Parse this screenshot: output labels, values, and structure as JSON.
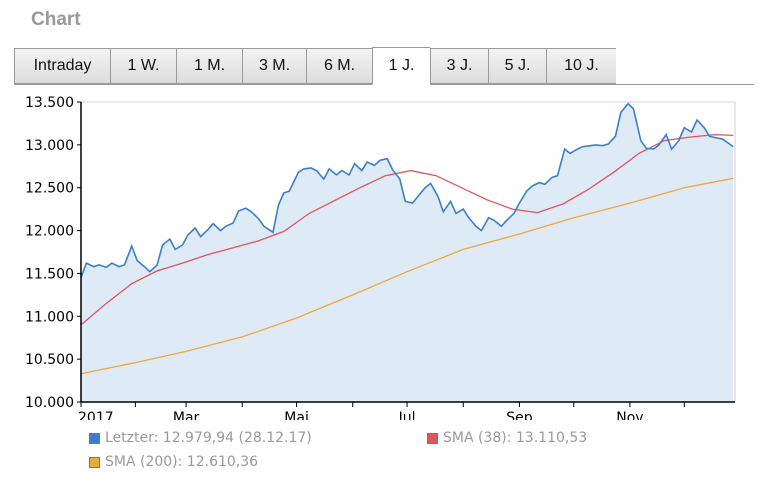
{
  "header": {
    "title": "Chart"
  },
  "tabs": [
    {
      "label": "Intraday",
      "active": false
    },
    {
      "label": "1 W.",
      "active": false
    },
    {
      "label": "1 M.",
      "active": false
    },
    {
      "label": "3 M.",
      "active": false
    },
    {
      "label": "6 M.",
      "active": false
    },
    {
      "label": "1 J.",
      "active": true
    },
    {
      "label": "3 J.",
      "active": false
    },
    {
      "label": "5 J.",
      "active": false
    },
    {
      "label": "10 J.",
      "active": false
    }
  ],
  "legend": {
    "last": "Letzter: 12.979,94 (28.12.17)",
    "sma38": "SMA (38): 13.110,53",
    "sma200": "SMA (200): 12.610,36"
  },
  "chart_data": {
    "type": "line",
    "title": "",
    "xlabel": "",
    "ylabel": "",
    "xlim": [
      "2017-01-02",
      "2017-12-29"
    ],
    "ylim": [
      10000,
      13500
    ],
    "yticks": [
      10000,
      10500,
      11000,
      11500,
      12000,
      12500,
      13000,
      13500
    ],
    "ytick_labels": [
      "10.000",
      "10.500",
      "11.000",
      "11.500",
      "12.000",
      "12.500",
      "13.000",
      "13.500"
    ],
    "xticks": [
      {
        "date": "2017-01-02",
        "label": "2017"
      },
      {
        "date": "2017-03-01",
        "label": "Mar"
      },
      {
        "date": "2017-05-01",
        "label": "Mai"
      },
      {
        "date": "2017-07-01",
        "label": "Jul"
      },
      {
        "date": "2017-09-01",
        "label": "Sep"
      },
      {
        "date": "2017-11-01",
        "label": "Nov"
      }
    ],
    "grid": false,
    "series": [
      {
        "name": "Letzter",
        "color": "#3c7fc8",
        "fill": "#deeaf6",
        "x": [
          "2017-01-02",
          "2017-01-05",
          "2017-01-09",
          "2017-01-12",
          "2017-01-16",
          "2017-01-19",
          "2017-01-23",
          "2017-01-26",
          "2017-01-30",
          "2017-02-02",
          "2017-02-06",
          "2017-02-09",
          "2017-02-13",
          "2017-02-16",
          "2017-02-20",
          "2017-02-23",
          "2017-02-27",
          "2017-03-02",
          "2017-03-06",
          "2017-03-09",
          "2017-03-13",
          "2017-03-16",
          "2017-03-20",
          "2017-03-23",
          "2017-03-27",
          "2017-03-30",
          "2017-04-03",
          "2017-04-06",
          "2017-04-10",
          "2017-04-13",
          "2017-04-18",
          "2017-04-21",
          "2017-04-24",
          "2017-04-27",
          "2017-05-02",
          "2017-05-05",
          "2017-05-09",
          "2017-05-12",
          "2017-05-16",
          "2017-05-19",
          "2017-05-23",
          "2017-05-26",
          "2017-05-30",
          "2017-06-02",
          "2017-06-06",
          "2017-06-09",
          "2017-06-13",
          "2017-06-16",
          "2017-06-20",
          "2017-06-23",
          "2017-06-27",
          "2017-06-30",
          "2017-07-04",
          "2017-07-07",
          "2017-07-11",
          "2017-07-14",
          "2017-07-18",
          "2017-07-21",
          "2017-07-25",
          "2017-07-28",
          "2017-08-01",
          "2017-08-04",
          "2017-08-08",
          "2017-08-11",
          "2017-08-15",
          "2017-08-18",
          "2017-08-22",
          "2017-08-25",
          "2017-08-29",
          "2017-09-01",
          "2017-09-05",
          "2017-09-08",
          "2017-09-12",
          "2017-09-15",
          "2017-09-19",
          "2017-09-22",
          "2017-09-26",
          "2017-09-29",
          "2017-10-03",
          "2017-10-06",
          "2017-10-10",
          "2017-10-13",
          "2017-10-17",
          "2017-10-20",
          "2017-10-24",
          "2017-10-27",
          "2017-10-31",
          "2017-11-03",
          "2017-11-07",
          "2017-11-10",
          "2017-11-14",
          "2017-11-17",
          "2017-11-21",
          "2017-11-24",
          "2017-11-28",
          "2017-12-01",
          "2017-12-05",
          "2017-12-08",
          "2017-12-12",
          "2017-12-15",
          "2017-12-19",
          "2017-12-22",
          "2017-12-28"
        ],
        "values": [
          11450,
          11620,
          11580,
          11600,
          11570,
          11620,
          11580,
          11600,
          11820,
          11650,
          11580,
          11520,
          11600,
          11830,
          11900,
          11780,
          11830,
          11950,
          12030,
          11930,
          12010,
          12080,
          12000,
          12050,
          12090,
          12230,
          12260,
          12220,
          12140,
          12050,
          11980,
          12300,
          12440,
          12460,
          12680,
          12720,
          12730,
          12700,
          12600,
          12720,
          12650,
          12700,
          12650,
          12780,
          12700,
          12800,
          12760,
          12820,
          12840,
          12710,
          12600,
          12340,
          12320,
          12400,
          12500,
          12550,
          12400,
          12220,
          12340,
          12200,
          12250,
          12150,
          12050,
          12000,
          12150,
          12120,
          12050,
          12120,
          12200,
          12320,
          12460,
          12520,
          12560,
          12540,
          12620,
          12640,
          12950,
          12900,
          12950,
          12980,
          12990,
          13000,
          12990,
          13010,
          13100,
          13380,
          13480,
          13420,
          13050,
          12960,
          12950,
          13000,
          13120,
          12950,
          13050,
          13200,
          13150,
          13290,
          13200,
          13100,
          13080,
          13070,
          12980
        ]
      },
      {
        "name": "SMA (38)",
        "color": "#e05460",
        "x": [
          "2017-01-02",
          "2017-01-16",
          "2017-01-30",
          "2017-02-13",
          "2017-02-27",
          "2017-03-13",
          "2017-03-27",
          "2017-04-10",
          "2017-04-24",
          "2017-05-08",
          "2017-05-22",
          "2017-06-05",
          "2017-06-19",
          "2017-07-03",
          "2017-07-17",
          "2017-07-31",
          "2017-08-14",
          "2017-08-28",
          "2017-09-11",
          "2017-09-25",
          "2017-10-09",
          "2017-10-23",
          "2017-11-06",
          "2017-11-20",
          "2017-12-04",
          "2017-12-18",
          "2017-12-28"
        ],
        "values": [
          10900,
          11150,
          11380,
          11530,
          11620,
          11720,
          11800,
          11880,
          11990,
          12200,
          12350,
          12500,
          12640,
          12700,
          12640,
          12500,
          12360,
          12250,
          12210,
          12310,
          12480,
          12680,
          12900,
          13050,
          13090,
          13120,
          13110
        ]
      },
      {
        "name": "SMA (200)",
        "color": "#f0a83c",
        "x": [
          "2017-01-02",
          "2017-02-01",
          "2017-03-01",
          "2017-04-01",
          "2017-05-01",
          "2017-06-01",
          "2017-07-01",
          "2017-08-01",
          "2017-09-01",
          "2017-10-01",
          "2017-11-01",
          "2017-12-01",
          "2017-12-28"
        ],
        "values": [
          10330,
          10460,
          10590,
          10760,
          10980,
          11250,
          11520,
          11780,
          11960,
          12150,
          12320,
          12500,
          12610
        ]
      }
    ]
  }
}
